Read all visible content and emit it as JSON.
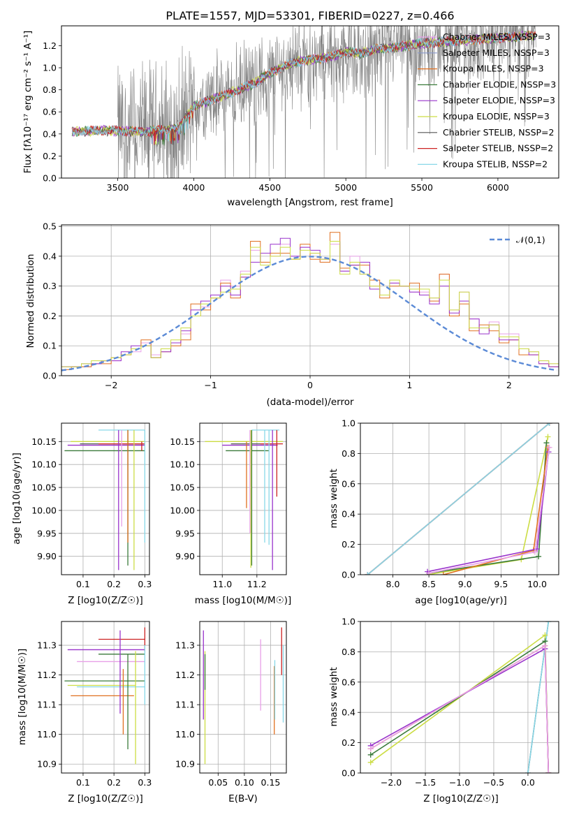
{
  "colors": {
    "Chabrier MILES": "#e8a0e8",
    "Salpeter MILES": "#8899cc",
    "Kroupa MILES": "#e07020",
    "Chabrier ELODIE": "#3a7a3a",
    "Salpeter ELODIE": "#9933cc",
    "Kroupa ELODIE": "#ccdd44",
    "Chabrier STELIB": "#555555",
    "Salpeter STELIB": "#cc2222",
    "Kroupa STELIB": "#88d8e8",
    "gauss": "#5b8ad6",
    "data": "#808080"
  },
  "spectrum": {
    "title": "PLATE=1557, MJD=53301, FIBERID=0227, z=0.466",
    "xlabel": "wavelength [Angstrom, rest frame]",
    "ylabel": "Flux [fλ10⁻¹⁷ erg cm⁻² s⁻¹ A⁻¹]",
    "xlim": [
      3130,
      6400
    ],
    "ylim": [
      0,
      1.38
    ],
    "xticks": [
      "3500",
      "4000",
      "4500",
      "5000",
      "5500",
      "6000"
    ],
    "yticks": [
      "0.0",
      "0.2",
      "0.4",
      "0.6",
      "0.8",
      "1.0",
      "1.2"
    ],
    "legend": [
      {
        "label": "Chabrier MILES, NSSP=3",
        "ref": "Chabrier MILES"
      },
      {
        "label": "Salpeter MILES, NSSP=3",
        "ref": "Salpeter MILES"
      },
      {
        "label": "Kroupa MILES, NSSP=3",
        "ref": "Kroupa MILES"
      },
      {
        "label": "Chabrier ELODIE, NSSP=3",
        "ref": "Chabrier ELODIE"
      },
      {
        "label": "Salpeter ELODIE, NSSP=3",
        "ref": "Salpeter ELODIE"
      },
      {
        "label": "Kroupa ELODIE, NSSP=3",
        "ref": "Kroupa ELODIE"
      },
      {
        "label": "Chabrier STELIB, NSSP=2",
        "ref": "Chabrier STELIB"
      },
      {
        "label": "Salpeter STELIB, NSSP=2",
        "ref": "Salpeter STELIB"
      },
      {
        "label": "Kroupa STELIB, NSSP=2",
        "ref": "Kroupa STELIB"
      }
    ]
  },
  "chart_data": [
    {
      "type": "line",
      "title": "PLATE=1557, MJD=53301, FIBERID=0227, z=0.466",
      "xlabel": "wavelength [Angstrom, rest frame]",
      "ylabel": "Flux [fλ10⁻¹⁷ erg cm⁻² s⁻¹ A⁻¹]",
      "xlim": [
        3130,
        6400
      ],
      "ylim": [
        0,
        1.38
      ],
      "model_continuum": {
        "x": [
          3200,
          3350,
          3500,
          3650,
          3750,
          3900,
          3950,
          4000,
          4100,
          4200,
          4300,
          4400,
          4500,
          4600,
          4700,
          4800,
          4900,
          5000,
          5100,
          5200,
          5300,
          5400,
          5500,
          5600,
          5700,
          5800,
          5900,
          6000,
          6100,
          6200
        ],
        "y": [
          0.42,
          0.43,
          0.43,
          0.42,
          0.43,
          0.45,
          0.55,
          0.65,
          0.7,
          0.75,
          0.8,
          0.86,
          0.95,
          1.02,
          1.06,
          1.08,
          1.1,
          1.14,
          1.13,
          1.17,
          1.18,
          1.2,
          1.22,
          1.23,
          1.24,
          1.25,
          1.26,
          1.27,
          1.28,
          1.29
        ]
      },
      "data_note": "noisy observed spectrum in grey from ~3500 to ~6250"
    },
    {
      "type": "bar",
      "xlabel": "(data-model)/error",
      "ylabel": "Normed distribution",
      "xlim": [
        -2.5,
        2.5
      ],
      "ylim": [
        0,
        0.505
      ],
      "legend": "𝒩(0,1)",
      "bin_edges_start": -2.5,
      "bin_width": 0.1,
      "series": [
        {
          "ref": "Chabrier MILES",
          "values": [
            0.03,
            0.03,
            0.03,
            0.04,
            0.05,
            0.05,
            0.07,
            0.08,
            0.11,
            0.07,
            0.09,
            0.11,
            0.14,
            0.2,
            0.23,
            0.27,
            0.32,
            0.3,
            0.35,
            0.42,
            0.38,
            0.4,
            0.44,
            0.4,
            0.43,
            0.41,
            0.38,
            0.44,
            0.35,
            0.4,
            0.34,
            0.3,
            0.27,
            0.31,
            0.3,
            0.28,
            0.28,
            0.26,
            0.34,
            0.22,
            0.28,
            0.19,
            0.16,
            0.18,
            0.14,
            0.14,
            0.09,
            0.08,
            0.05,
            0.04
          ]
        },
        {
          "ref": "Kroupa MILES",
          "values": [
            0.02,
            0.03,
            0.03,
            0.04,
            0.04,
            0.06,
            0.07,
            0.09,
            0.12,
            0.06,
            0.08,
            0.1,
            0.12,
            0.24,
            0.22,
            0.26,
            0.31,
            0.26,
            0.33,
            0.45,
            0.38,
            0.41,
            0.41,
            0.39,
            0.44,
            0.39,
            0.38,
            0.48,
            0.36,
            0.37,
            0.37,
            0.32,
            0.26,
            0.3,
            0.3,
            0.31,
            0.27,
            0.25,
            0.34,
            0.2,
            0.24,
            0.15,
            0.17,
            0.15,
            0.11,
            0.12,
            0.07,
            0.07,
            0.04,
            0.03
          ]
        },
        {
          "ref": "Salpeter ELODIE",
          "values": [
            0.03,
            0.03,
            0.04,
            0.04,
            0.05,
            0.05,
            0.08,
            0.1,
            0.1,
            0.06,
            0.08,
            0.11,
            0.15,
            0.22,
            0.25,
            0.27,
            0.3,
            0.27,
            0.33,
            0.38,
            0.41,
            0.44,
            0.46,
            0.4,
            0.43,
            0.42,
            0.39,
            0.45,
            0.35,
            0.37,
            0.38,
            0.29,
            0.27,
            0.31,
            0.3,
            0.28,
            0.27,
            0.24,
            0.3,
            0.21,
            0.25,
            0.19,
            0.14,
            0.17,
            0.12,
            0.12,
            0.09,
            0.07,
            0.04,
            0.03
          ]
        },
        {
          "ref": "Kroupa ELODIE",
          "values": [
            0.03,
            0.03,
            0.04,
            0.05,
            0.05,
            0.06,
            0.07,
            0.09,
            0.1,
            0.06,
            0.09,
            0.12,
            0.16,
            0.2,
            0.24,
            0.26,
            0.28,
            0.29,
            0.34,
            0.43,
            0.37,
            0.4,
            0.43,
            0.39,
            0.42,
            0.41,
            0.39,
            0.45,
            0.34,
            0.38,
            0.34,
            0.3,
            0.27,
            0.32,
            0.3,
            0.29,
            0.29,
            0.26,
            0.32,
            0.22,
            0.28,
            0.16,
            0.16,
            0.17,
            0.13,
            0.13,
            0.09,
            0.08,
            0.05,
            0.04
          ]
        }
      ],
      "gaussian": {
        "mean": 0,
        "sigma": 1
      }
    },
    {
      "type": "scatter",
      "xlabel": "Z [log10(Z/Z☉)]",
      "ylabel": "age  [log10(age/yr)]",
      "xlim": [
        0.03,
        0.315
      ],
      "ylim": [
        9.86,
        10.19
      ],
      "segments": [
        {
          "ref": "Kroupa STELIB",
          "kind": "h",
          "y": 10.175,
          "x0": 0.15,
          "x1": 0.3
        },
        {
          "ref": "Kroupa ELODIE",
          "kind": "h",
          "y": 10.15,
          "x0": 0.06,
          "x1": 0.3
        },
        {
          "ref": "Chabrier STELIB",
          "kind": "h",
          "y": 10.145,
          "x0": 0.09,
          "x1": 0.3
        },
        {
          "ref": "Salpeter ELODIE",
          "kind": "h",
          "y": 10.142,
          "x0": 0.05,
          "x1": 0.3
        },
        {
          "ref": "Salpeter STELIB",
          "kind": "h",
          "y": 10.145,
          "x0": 0.15,
          "x1": 0.3
        },
        {
          "ref": "Chabrier ELODIE",
          "kind": "h",
          "y": 10.13,
          "x0": 0.04,
          "x1": 0.3
        },
        {
          "ref": "Chabrier ELODIE",
          "kind": "v",
          "x": 0.245,
          "y0": 9.88,
          "y1": 10.175
        },
        {
          "ref": "Kroupa MILES",
          "kind": "v",
          "x": 0.245,
          "y0": 9.93,
          "y1": 10.175
        },
        {
          "ref": "Salpeter ELODIE",
          "kind": "v",
          "x": 0.215,
          "y0": 9.87,
          "y1": 10.175
        },
        {
          "ref": "Chabrier MILES",
          "kind": "v",
          "x": 0.225,
          "y0": 9.965,
          "y1": 10.175
        },
        {
          "ref": "Kroupa ELODIE",
          "kind": "v",
          "x": 0.265,
          "y0": 9.87,
          "y1": 10.175
        },
        {
          "ref": "Kroupa STELIB",
          "kind": "v",
          "x": 0.3,
          "y0": 9.93,
          "y1": 10.175
        },
        {
          "ref": "Salpeter STELIB",
          "kind": "v",
          "x": 0.29,
          "y0": 10.13,
          "y1": 10.15
        }
      ]
    },
    {
      "type": "scatter",
      "xlabel": "mass [log10(M/M☉)]",
      "ylabel": "",
      "xlim": [
        10.87,
        11.37
      ],
      "ylim": [
        9.86,
        10.19
      ],
      "segments": [
        {
          "ref": "Kroupa STELIB",
          "kind": "h",
          "y": 10.175,
          "x0": 11.17,
          "x1": 11.33
        },
        {
          "ref": "Kroupa ELODIE",
          "kind": "h",
          "y": 10.15,
          "x0": 10.9,
          "x1": 11.35
        },
        {
          "ref": "Chabrier STELIB",
          "kind": "h",
          "y": 10.145,
          "x0": 11.05,
          "x1": 11.3
        },
        {
          "ref": "Salpeter ELODIE",
          "kind": "h",
          "y": 10.142,
          "x0": 11.0,
          "x1": 11.32
        },
        {
          "ref": "Salpeter STELIB",
          "kind": "h",
          "y": 10.145,
          "x0": 11.22,
          "x1": 11.35
        },
        {
          "ref": "Chabrier ELODIE",
          "kind": "h",
          "y": 10.13,
          "x0": 11.02,
          "x1": 11.27
        },
        {
          "ref": "Kroupa MILES",
          "kind": "v",
          "x": 11.14,
          "y0": 10.005,
          "y1": 10.15
        },
        {
          "ref": "Chabrier ELODIE",
          "kind": "v",
          "x": 11.17,
          "y0": 9.88,
          "y1": 10.175
        },
        {
          "ref": "Kroupa ELODIE",
          "kind": "v",
          "x": 11.165,
          "y0": 9.875,
          "y1": 10.175
        },
        {
          "ref": "Chabrier MILES",
          "kind": "v",
          "x": 11.16,
          "y0": 9.95,
          "y1": 10.175
        },
        {
          "ref": "Kroupa STELIB",
          "kind": "v",
          "x": 11.245,
          "y0": 9.93,
          "y1": 10.175
        },
        {
          "ref": "Salpeter ELODIE",
          "kind": "v",
          "x": 11.29,
          "y0": 9.87,
          "y1": 10.175
        },
        {
          "ref": "Salpeter STELIB",
          "kind": "v",
          "x": 11.315,
          "y0": 10.03,
          "y1": 10.175
        },
        {
          "ref": "Kroupa STELIB",
          "kind": "v",
          "x": 11.27,
          "y0": 9.925,
          "y1": 10.175
        }
      ]
    },
    {
      "type": "line",
      "xlabel": "age  [log10(age/yr)]",
      "ylabel": "mass weight",
      "xlim": [
        7.55,
        10.3
      ],
      "ylim": [
        0,
        1.0
      ],
      "series": [
        {
          "ref": "Chabrier STELIB",
          "x": [
            7.65,
            10.17
          ],
          "y": [
            0.0,
            1.0
          ]
        },
        {
          "ref": "Salpeter STELIB",
          "x": [
            7.65,
            10.17
          ],
          "y": [
            0.0,
            1.0
          ]
        },
        {
          "ref": "Kroupa STELIB",
          "x": [
            7.65,
            10.17
          ],
          "y": [
            0.0,
            1.0
          ]
        },
        {
          "ref": "Kroupa ELODIE",
          "x": [
            8.48,
            9.78,
            10.15
          ],
          "y": [
            0.0,
            0.1,
            0.91
          ]
        },
        {
          "ref": "Chabrier ELODIE",
          "x": [
            8.5,
            10.02,
            10.13
          ],
          "y": [
            0.01,
            0.12,
            0.87
          ]
        },
        {
          "ref": "Kroupa MILES",
          "x": [
            8.7,
            9.95,
            10.15
          ],
          "y": [
            0.0,
            0.16,
            0.84
          ]
        },
        {
          "ref": "Salpeter ELODIE",
          "x": [
            8.48,
            10.0,
            10.16
          ],
          "y": [
            0.02,
            0.17,
            0.81
          ]
        },
        {
          "ref": "Chabrier MILES",
          "x": [
            8.5,
            9.97,
            10.17
          ],
          "y": [
            0.01,
            0.15,
            0.84
          ]
        }
      ]
    },
    {
      "type": "scatter",
      "xlabel": "Z [log10(Z/Z☉)]",
      "ylabel": "mass [log10(M/M☉)]",
      "xlim": [
        0.03,
        0.315
      ],
      "ylim": [
        10.87,
        11.38
      ],
      "segments": [
        {
          "ref": "Salpeter STELIB",
          "kind": "h",
          "y": 11.32,
          "x0": 0.15,
          "x1": 0.3
        },
        {
          "ref": "Salpeter ELODIE",
          "kind": "h",
          "y": 11.285,
          "x0": 0.05,
          "x1": 0.3
        },
        {
          "ref": "Chabrier ELODIE",
          "kind": "h",
          "y": 11.27,
          "x0": 0.15,
          "x1": 0.3
        },
        {
          "ref": "Chabrier MILES",
          "kind": "h",
          "y": 11.245,
          "x0": 0.08,
          "x1": 0.3
        },
        {
          "ref": "Chabrier ELODIE",
          "kind": "h",
          "y": 11.18,
          "x0": 0.04,
          "x1": 0.3
        },
        {
          "ref": "Kroupa ELODIE",
          "kind": "h",
          "y": 11.165,
          "x0": 0.05,
          "x1": 0.27
        },
        {
          "ref": "Kroupa STELIB",
          "kind": "h",
          "y": 11.16,
          "x0": 0.08,
          "x1": 0.3
        },
        {
          "ref": "Kroupa MILES",
          "kind": "h",
          "y": 11.13,
          "x0": 0.06,
          "x1": 0.265
        },
        {
          "ref": "Kroupa MILES",
          "kind": "v",
          "x": 0.23,
          "y0": 11.0,
          "y1": 11.22
        },
        {
          "ref": "Salpeter ELODIE",
          "kind": "v",
          "x": 0.22,
          "y0": 11.07,
          "y1": 11.35
        },
        {
          "ref": "Chabrier ELODIE",
          "kind": "v",
          "x": 0.245,
          "y0": 10.95,
          "y1": 11.27
        },
        {
          "ref": "Kroupa ELODIE",
          "kind": "v",
          "x": 0.27,
          "y0": 10.9,
          "y1": 11.28
        },
        {
          "ref": "Salpeter STELIB",
          "kind": "v",
          "x": 0.3,
          "y0": 11.28,
          "y1": 11.36
        },
        {
          "ref": "Kroupa STELIB",
          "kind": "v",
          "x": 0.3,
          "y0": 11.1,
          "y1": 11.3
        }
      ]
    },
    {
      "type": "scatter",
      "xlabel": "E(B-V)",
      "ylabel": "",
      "xlim": [
        0.015,
        0.18
      ],
      "ylim": [
        10.87,
        11.38
      ],
      "segments": [
        {
          "ref": "Salpeter ELODIE",
          "kind": "v",
          "x": 0.022,
          "y0": 11.05,
          "y1": 11.35
        },
        {
          "ref": "Kroupa ELODIE",
          "kind": "v",
          "x": 0.025,
          "y0": 10.9,
          "y1": 11.28
        },
        {
          "ref": "Chabrier ELODIE",
          "kind": "v",
          "x": 0.025,
          "y0": 11.15,
          "y1": 11.27
        },
        {
          "ref": "Chabrier MILES",
          "kind": "v",
          "x": 0.131,
          "y0": 11.08,
          "y1": 11.32
        },
        {
          "ref": "Kroupa MILES",
          "kind": "v",
          "x": 0.157,
          "y0": 11.0,
          "y1": 11.23
        },
        {
          "ref": "Kroupa STELIB",
          "kind": "v",
          "x": 0.158,
          "y0": 11.05,
          "y1": 11.25
        },
        {
          "ref": "Salpeter STELIB",
          "kind": "v",
          "x": 0.171,
          "y0": 11.2,
          "y1": 11.36
        },
        {
          "ref": "Kroupa STELIB",
          "kind": "v",
          "x": 0.174,
          "y0": 11.04,
          "y1": 11.3
        }
      ]
    },
    {
      "type": "line",
      "xlabel": "Z [log10(Z/Z☉)]",
      "ylabel": "mass weight",
      "xlim": [
        -2.45,
        0.45
      ],
      "ylim": [
        0,
        1.0
      ],
      "series": [
        {
          "ref": "Chabrier STELIB",
          "x": [
            0.0,
            0.3
          ],
          "y": [
            0.0,
            1.0
          ]
        },
        {
          "ref": "Kroupa STELIB",
          "x": [
            0.0,
            0.3
          ],
          "y": [
            0.0,
            1.0
          ]
        },
        {
          "ref": "Kroupa ELODIE",
          "x": [
            -2.3,
            0.25,
            0.3
          ],
          "y": [
            0.07,
            0.91,
            0.0
          ]
        },
        {
          "ref": "Chabrier ELODIE",
          "x": [
            -2.3,
            0.25,
            0.3
          ],
          "y": [
            0.12,
            0.87,
            0.0
          ]
        },
        {
          "ref": "Kroupa MILES",
          "x": [
            -2.3,
            0.25,
            0.3
          ],
          "y": [
            0.16,
            0.84,
            0.0
          ]
        },
        {
          "ref": "Salpeter ELODIE",
          "x": [
            -2.3,
            0.25,
            0.3
          ],
          "y": [
            0.18,
            0.82,
            0.0
          ]
        },
        {
          "ref": "Chabrier MILES",
          "x": [
            -2.3,
            0.25,
            0.3
          ],
          "y": [
            0.16,
            0.84,
            0.0
          ]
        }
      ]
    }
  ],
  "ticks": {
    "hist_x": [
      "−2",
      "−1",
      "0",
      "1",
      "2"
    ],
    "hist_y": [
      "0.0",
      "0.1",
      "0.2",
      "0.3",
      "0.4",
      "0.5"
    ],
    "age_y": [
      "9.90",
      "9.95",
      "10.00",
      "10.05",
      "10.10",
      "10.15"
    ],
    "z_x": [
      "0.1",
      "0.2",
      "0.3"
    ],
    "mass_x": [
      "11.0",
      "11.2"
    ],
    "mw_y": [
      "0.0",
      "0.2",
      "0.4",
      "0.6",
      "0.8",
      "1.0"
    ],
    "age_x": [
      "8.0",
      "8.5",
      "9.0",
      "9.5",
      "10.0"
    ],
    "mass_y": [
      "10.9",
      "11.0",
      "11.1",
      "11.2",
      "11.3"
    ],
    "ebv_x": [
      "0.05",
      "0.10",
      "0.15"
    ],
    "zz_x": [
      "−2.0",
      "−1.5",
      "−1.0",
      "−0.5",
      "0.0"
    ]
  }
}
